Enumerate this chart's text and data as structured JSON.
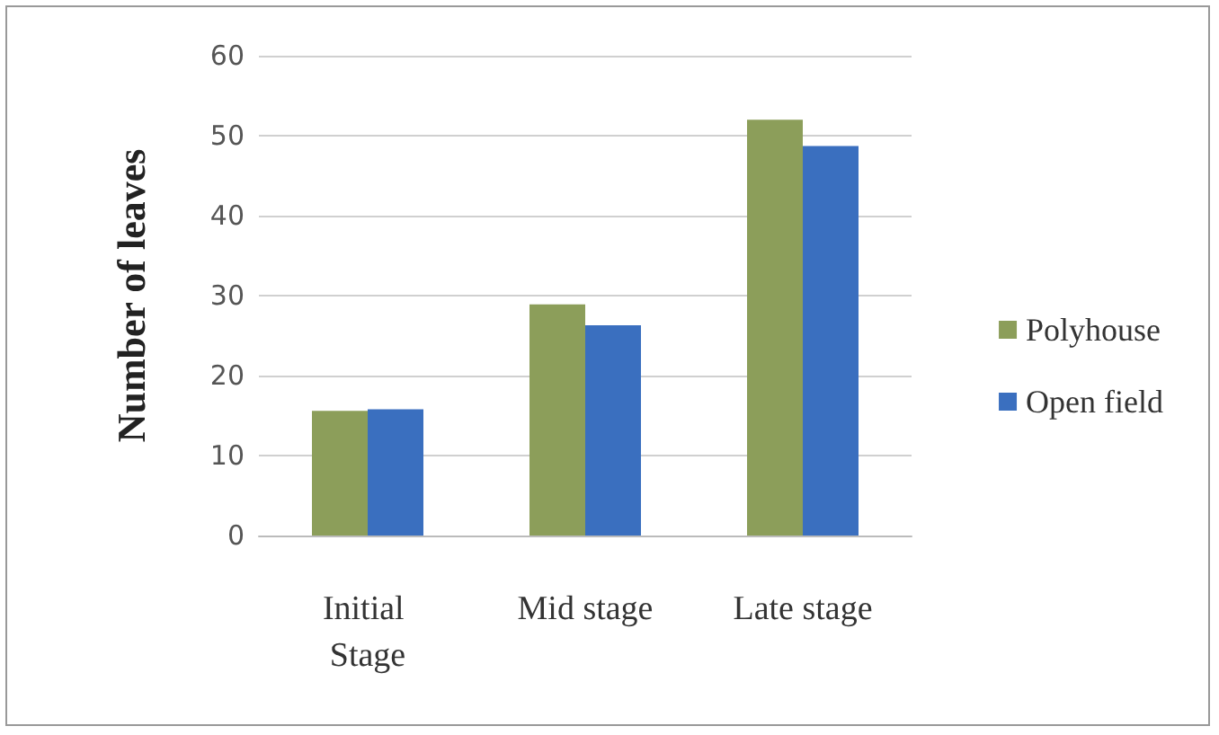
{
  "chart_data": {
    "type": "bar",
    "ylabel": "Number of leaves",
    "categories": [
      "Initial Stage",
      "Mid stage",
      "Late stage"
    ],
    "series": [
      {
        "name": "Polyhouse",
        "color": "#8c9e5a",
        "values": [
          15.6,
          28.9,
          52.0
        ]
      },
      {
        "name": "Open field",
        "color": "#3a6fbf",
        "values": [
          15.8,
          26.3,
          48.7
        ]
      }
    ],
    "ylim": [
      0,
      60
    ],
    "yticks": [
      0,
      10,
      20,
      30,
      40,
      50,
      60
    ],
    "grid": "y",
    "legend": "right"
  }
}
